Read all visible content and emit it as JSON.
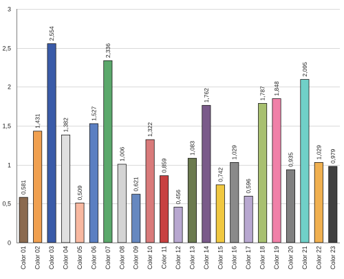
{
  "chart_data": {
    "type": "bar",
    "categories": [
      "Color 01",
      "Color 02",
      "Color 03",
      "Color 04",
      "Color 05",
      "Color 06",
      "Color 07",
      "Color 08",
      "Color 09",
      "Color 10",
      "Color 11",
      "Color 12",
      "Color 13",
      "Color 14",
      "Color 15",
      "Color 16",
      "Color 17",
      "Color 18",
      "Color 19",
      "Color 20",
      "Color 21",
      "Color 22",
      "Color 23"
    ],
    "values": [
      0.581,
      1.431,
      2.554,
      1.382,
      0.509,
      1.527,
      2.336,
      1.006,
      0.621,
      1.322,
      0.859,
      0.456,
      1.083,
      1.762,
      0.742,
      1.029,
      0.596,
      1.787,
      1.848,
      0.935,
      2.095,
      1.029,
      0.979
    ],
    "value_labels": [
      "0,581",
      "1,431",
      "2,554",
      "1,382",
      "0,509",
      "1,527",
      "2,336",
      "1,006",
      "0,621",
      "1,322",
      "0,859",
      "0,456",
      "1,083",
      "1,762",
      "0,742",
      "1,029",
      "0,596",
      "1,787",
      "1,848",
      "0,935",
      "2,095",
      "1,029",
      "0,979"
    ],
    "bar_colors": [
      "#8b6a4f",
      "#f0a050",
      "#3a5ba8",
      "#e0e0e0",
      "#f8b8a0",
      "#5b7fc2",
      "#5ba86b",
      "#d4d4d4",
      "#6688c0",
      "#d97a7a",
      "#c84040",
      "#b8a8d0",
      "#6b7a4f",
      "#7a5a8a",
      "#f0c840",
      "#8a8a8a",
      "#b8a8d0",
      "#a8c070",
      "#f080a8",
      "#808080",
      "#70d0c8",
      "#f0b050",
      "#404040"
    ],
    "y_ticks": [
      0,
      0.5,
      1,
      1.5,
      2,
      2.5,
      3
    ],
    "y_tick_labels": [
      "0",
      "0,5",
      "1",
      "1,5",
      "2",
      "2,5",
      "3"
    ],
    "ylim": [
      0,
      3
    ],
    "grid": true,
    "title": "",
    "xlabel": "",
    "ylabel": ""
  }
}
